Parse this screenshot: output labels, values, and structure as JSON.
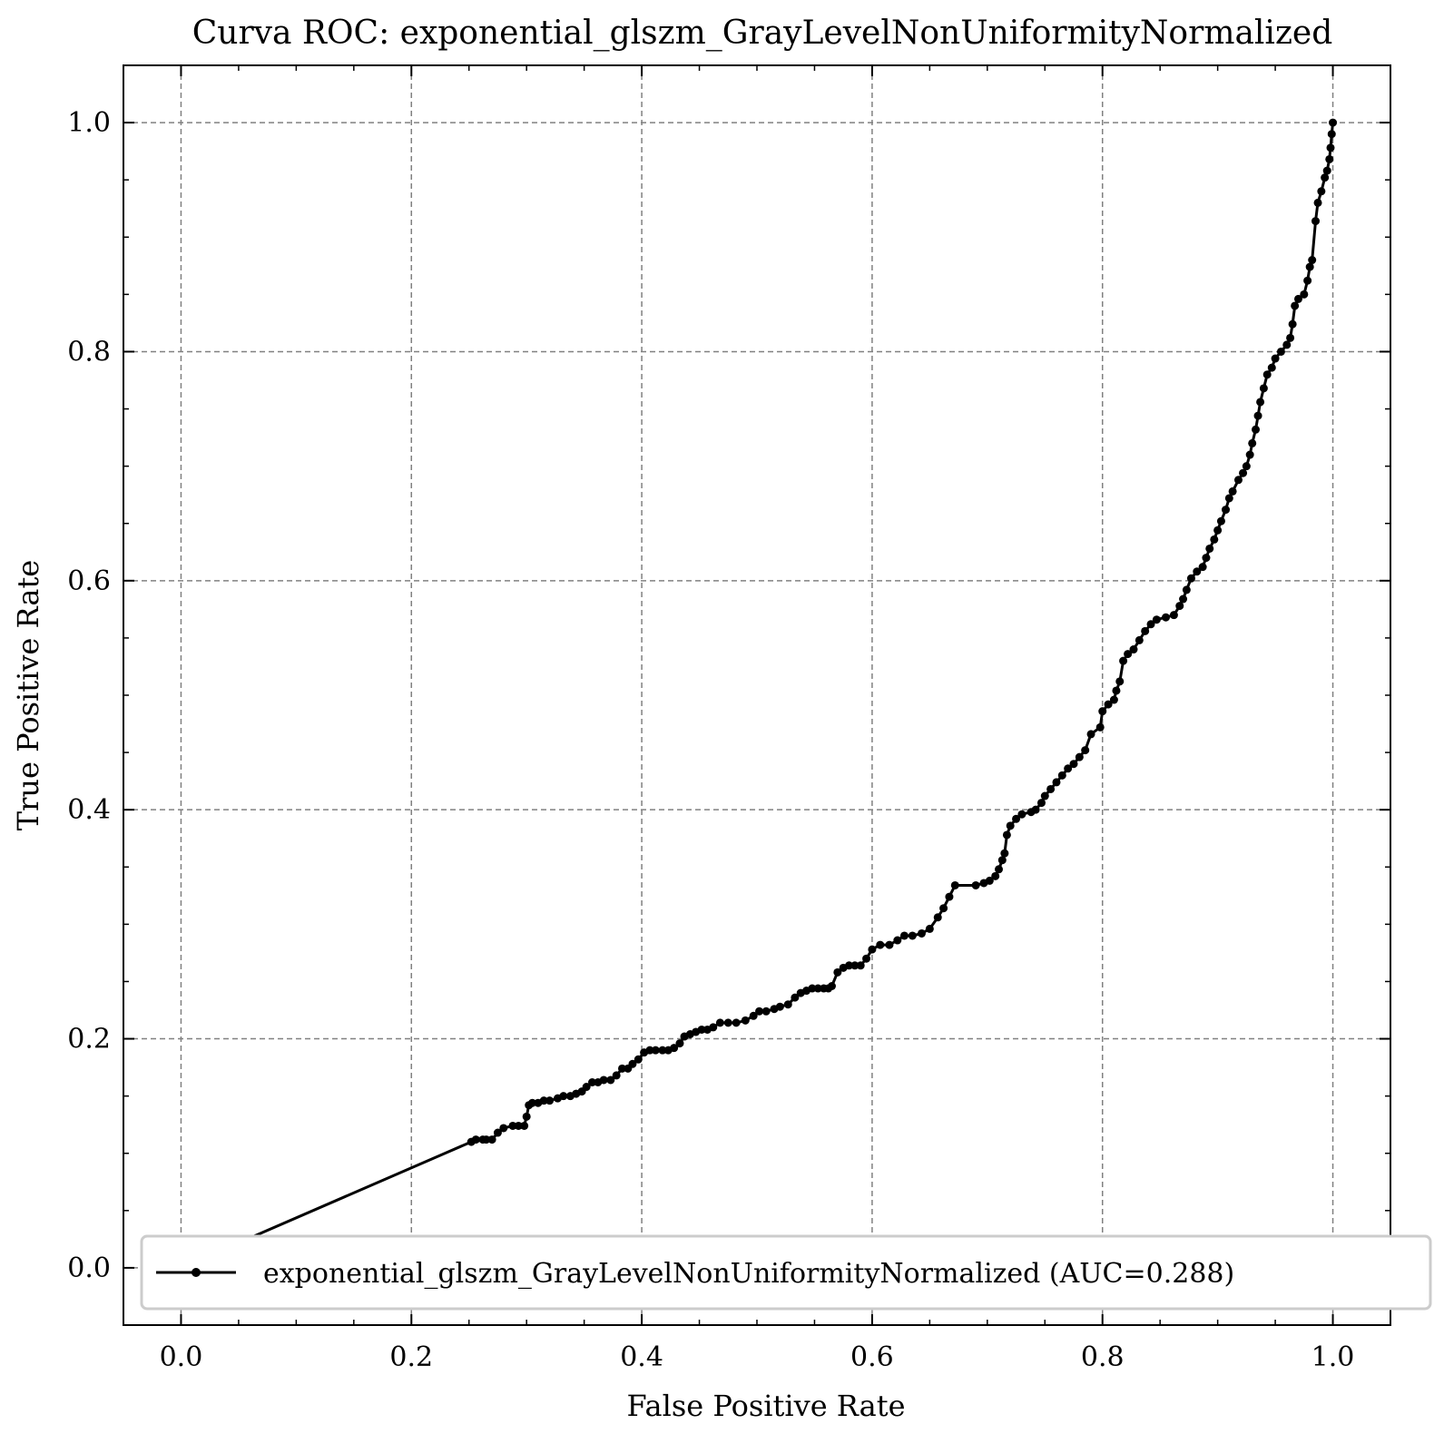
{
  "chart_data": {
    "type": "line",
    "title": "Curva ROC: exponential_glszm_GrayLevelNonUniformityNormalized",
    "xlabel": "False Positive Rate",
    "ylabel": "True Positive Rate",
    "xlim": [
      -0.05,
      1.05
    ],
    "ylim": [
      -0.05,
      1.05
    ],
    "xticks": [
      "0.0",
      "0.2",
      "0.4",
      "0.6",
      "0.8",
      "1.0"
    ],
    "yticks": [
      "0.0",
      "0.2",
      "0.4",
      "0.6",
      "0.8",
      "1.0"
    ],
    "grid": true,
    "legend_position": "lower-right",
    "series": [
      {
        "name": "exponential_glszm_GrayLevelNonUniformityNormalized (AUC=0.288)",
        "color": "#000000",
        "marker": "dot",
        "x": [
          0.0,
          0.252,
          0.256,
          0.262,
          0.265,
          0.27,
          0.275,
          0.28,
          0.288,
          0.293,
          0.298,
          0.3,
          0.302,
          0.305,
          0.31,
          0.315,
          0.32,
          0.327,
          0.332,
          0.338,
          0.343,
          0.348,
          0.352,
          0.357,
          0.362,
          0.367,
          0.373,
          0.378,
          0.383,
          0.388,
          0.392,
          0.397,
          0.402,
          0.407,
          0.412,
          0.418,
          0.423,
          0.428,
          0.433,
          0.437,
          0.442,
          0.447,
          0.452,
          0.457,
          0.462,
          0.468,
          0.475,
          0.482,
          0.49,
          0.497,
          0.502,
          0.508,
          0.515,
          0.52,
          0.527,
          0.533,
          0.538,
          0.543,
          0.548,
          0.553,
          0.558,
          0.562,
          0.565,
          0.57,
          0.575,
          0.58,
          0.585,
          0.59,
          0.595,
          0.6,
          0.607,
          0.615,
          0.622,
          0.628,
          0.635,
          0.643,
          0.65,
          0.657,
          0.662,
          0.667,
          0.672,
          0.69,
          0.697,
          0.702,
          0.707,
          0.71,
          0.713,
          0.715,
          0.717,
          0.72,
          0.725,
          0.73,
          0.738,
          0.742,
          0.747,
          0.75,
          0.755,
          0.76,
          0.765,
          0.77,
          0.775,
          0.78,
          0.785,
          0.79,
          0.798,
          0.8,
          0.805,
          0.81,
          0.812,
          0.815,
          0.818,
          0.822,
          0.827,
          0.832,
          0.837,
          0.842,
          0.847,
          0.855,
          0.862,
          0.867,
          0.87,
          0.873,
          0.877,
          0.882,
          0.887,
          0.89,
          0.893,
          0.897,
          0.9,
          0.903,
          0.907,
          0.91,
          0.913,
          0.918,
          0.922,
          0.925,
          0.928,
          0.93,
          0.933,
          0.935,
          0.937,
          0.94,
          0.943,
          0.947,
          0.95,
          0.955,
          0.96,
          0.963,
          0.965,
          0.967,
          0.97,
          0.975,
          0.978,
          0.98,
          0.982,
          0.985,
          0.987,
          0.99,
          0.993,
          0.995,
          0.997,
          0.998,
          0.999,
          1.0
        ],
        "y": [
          0.0,
          0.11,
          0.112,
          0.112,
          0.112,
          0.112,
          0.118,
          0.122,
          0.124,
          0.124,
          0.124,
          0.132,
          0.142,
          0.144,
          0.144,
          0.146,
          0.146,
          0.148,
          0.15,
          0.15,
          0.152,
          0.154,
          0.158,
          0.162,
          0.162,
          0.164,
          0.164,
          0.168,
          0.174,
          0.174,
          0.178,
          0.182,
          0.188,
          0.19,
          0.19,
          0.19,
          0.19,
          0.192,
          0.196,
          0.202,
          0.204,
          0.206,
          0.208,
          0.208,
          0.21,
          0.214,
          0.214,
          0.214,
          0.216,
          0.22,
          0.224,
          0.224,
          0.226,
          0.228,
          0.23,
          0.236,
          0.24,
          0.242,
          0.244,
          0.244,
          0.244,
          0.244,
          0.246,
          0.258,
          0.262,
          0.264,
          0.264,
          0.264,
          0.27,
          0.278,
          0.282,
          0.282,
          0.286,
          0.29,
          0.29,
          0.292,
          0.296,
          0.306,
          0.314,
          0.324,
          0.334,
          0.334,
          0.336,
          0.338,
          0.342,
          0.348,
          0.356,
          0.362,
          0.378,
          0.386,
          0.392,
          0.396,
          0.398,
          0.4,
          0.406,
          0.412,
          0.418,
          0.424,
          0.43,
          0.436,
          0.44,
          0.446,
          0.452,
          0.466,
          0.472,
          0.486,
          0.492,
          0.496,
          0.504,
          0.512,
          0.53,
          0.536,
          0.54,
          0.548,
          0.556,
          0.562,
          0.566,
          0.568,
          0.57,
          0.578,
          0.584,
          0.592,
          0.602,
          0.608,
          0.612,
          0.62,
          0.628,
          0.636,
          0.644,
          0.652,
          0.662,
          0.672,
          0.678,
          0.688,
          0.694,
          0.7,
          0.71,
          0.72,
          0.732,
          0.744,
          0.756,
          0.768,
          0.78,
          0.786,
          0.794,
          0.8,
          0.806,
          0.812,
          0.824,
          0.84,
          0.846,
          0.85,
          0.862,
          0.874,
          0.88,
          0.914,
          0.93,
          0.94,
          0.952,
          0.958,
          0.968,
          0.978,
          0.99,
          1.0
        ]
      }
    ]
  }
}
